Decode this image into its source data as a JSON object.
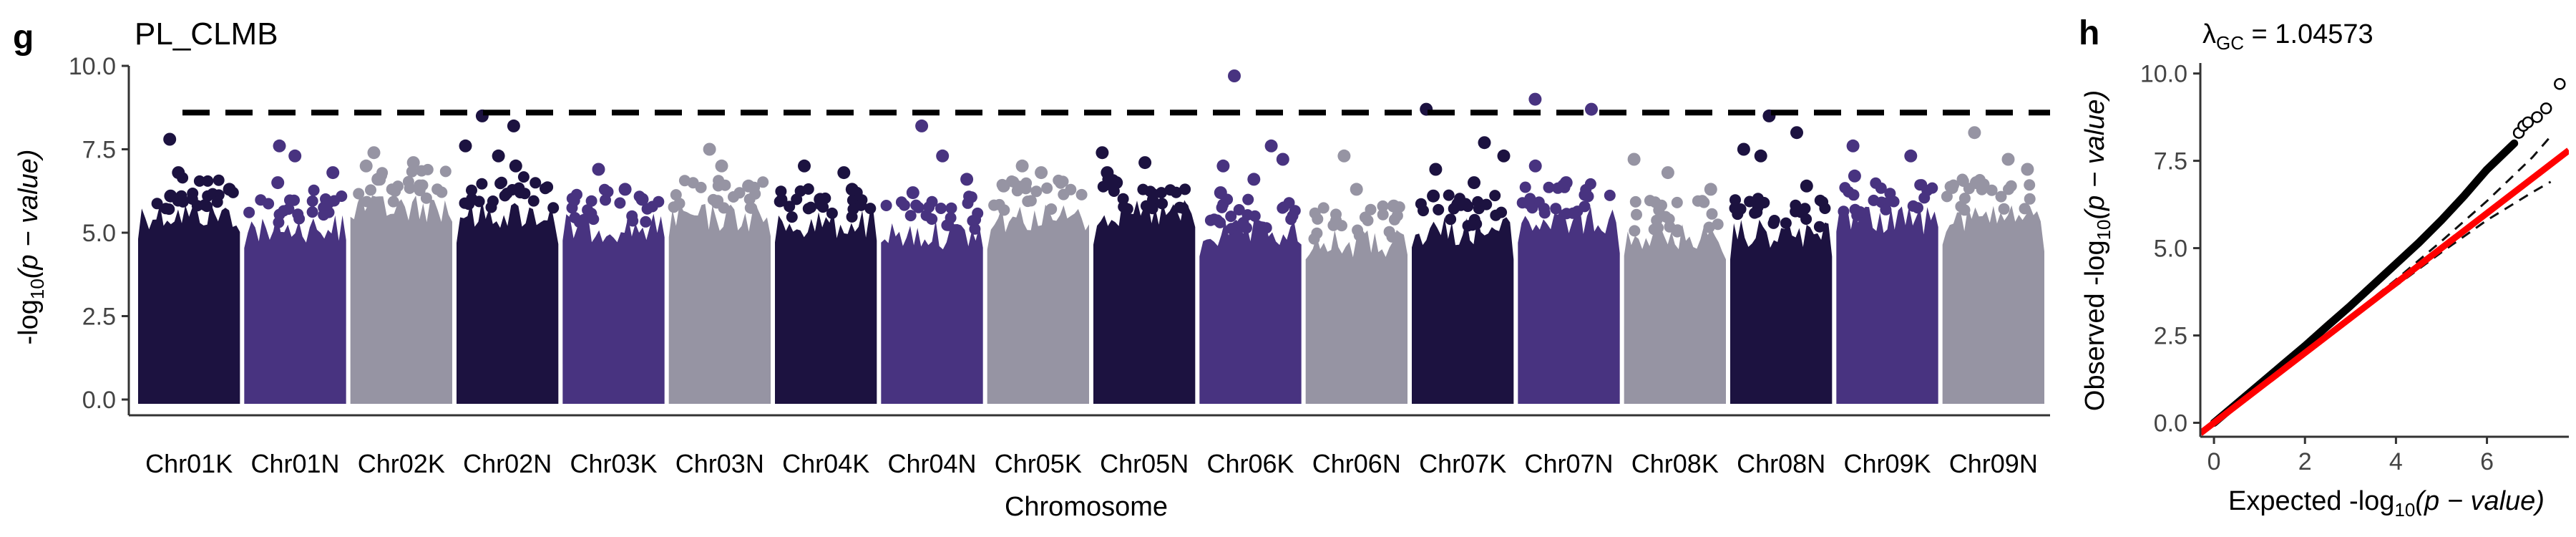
{
  "panels": {
    "g": {
      "label": "g",
      "title": "PL_CLMB",
      "xlabel": "Chromosome",
      "ylabel_prefix": "-log",
      "ylabel_sub": "10",
      "ylabel_suffix": "(p − value)",
      "ytick_labels": [
        "0.0",
        "2.5",
        "5.0",
        "7.5",
        "10.0"
      ]
    },
    "h": {
      "label": "h",
      "lambda_symbol": "λ",
      "lambda_sub": "GC",
      "lambda_text": " = 1.04573",
      "xlabel_prefix": "Expected -log",
      "xlabel_sub": "10",
      "xlabel_suffix": "(p − value)",
      "ylabel_prefix": "Observed -log",
      "ylabel_sub": "10",
      "ylabel_suffix": "(p − value)",
      "xtick_labels": [
        "0",
        "2",
        "4",
        "6"
      ],
      "ytick_labels": [
        "0.0",
        "2.5",
        "5.0",
        "7.5",
        "10.0"
      ]
    }
  },
  "chart_data": [
    {
      "type": "scatter",
      "subtype": "manhattan",
      "title": "PL_CLMB",
      "xlabel": "Chromosome",
      "ylabel": "-log10(p − value)",
      "ylim": [
        0,
        10
      ],
      "yticks": [
        0,
        2.5,
        5,
        7.5,
        10
      ],
      "significance_threshold": 8.6,
      "grid": false,
      "colors": [
        "#1c1240",
        "#483380",
        "#9694a3"
      ],
      "categories": [
        "Chr01K",
        "Chr01N",
        "Chr02K",
        "Chr02N",
        "Chr03K",
        "Chr03N",
        "Chr04K",
        "Chr04N",
        "Chr05K",
        "Chr05N",
        "Chr06K",
        "Chr06N",
        "Chr07K",
        "Chr07N",
        "Chr08K",
        "Chr08N",
        "Chr09K",
        "Chr09N"
      ],
      "chromosomes": [
        {
          "name": "Chr01K",
          "color_index": 0,
          "band_max": 6.0,
          "top_points": [
            7.8,
            6.8,
            6.3,
            6.1
          ]
        },
        {
          "name": "Chr01N",
          "color_index": 1,
          "band_max": 5.6,
          "top_points": [
            7.6,
            7.3,
            6.8,
            6.5
          ]
        },
        {
          "name": "Chr02K",
          "color_index": 2,
          "band_max": 6.2,
          "top_points": [
            7.4,
            7.1,
            7.0,
            6.6
          ]
        },
        {
          "name": "Chr02N",
          "color_index": 0,
          "band_max": 6.0,
          "top_points": [
            8.5,
            8.2,
            7.6,
            7.3,
            7.0
          ]
        },
        {
          "name": "Chr03K",
          "color_index": 1,
          "band_max": 5.6,
          "top_points": [
            6.9,
            6.3,
            6.0
          ]
        },
        {
          "name": "Chr03N",
          "color_index": 2,
          "band_max": 5.9,
          "top_points": [
            7.5,
            7.0,
            6.4
          ]
        },
        {
          "name": "Chr04K",
          "color_index": 0,
          "band_max": 5.7,
          "top_points": [
            7.0,
            6.8,
            6.3,
            6.0
          ]
        },
        {
          "name": "Chr04N",
          "color_index": 1,
          "band_max": 5.4,
          "top_points": [
            8.2,
            7.3,
            6.6,
            6.2
          ]
        },
        {
          "name": "Chr05K",
          "color_index": 2,
          "band_max": 5.9,
          "top_points": [
            7.0,
            6.8,
            6.4
          ]
        },
        {
          "name": "Chr05N",
          "color_index": 0,
          "band_max": 6.0,
          "top_points": [
            7.4,
            7.1,
            6.8,
            6.5
          ]
        },
        {
          "name": "Chr06K",
          "color_index": 1,
          "band_max": 5.4,
          "top_points": [
            9.7,
            7.6,
            7.2,
            7.0,
            6.6,
            6.2
          ]
        },
        {
          "name": "Chr06N",
          "color_index": 2,
          "band_max": 5.1,
          "top_points": [
            7.3,
            6.3,
            5.8
          ]
        },
        {
          "name": "Chr07K",
          "color_index": 0,
          "band_max": 5.5,
          "top_points": [
            8.7,
            7.7,
            7.3,
            6.9,
            6.5,
            6.1
          ]
        },
        {
          "name": "Chr07N",
          "color_index": 1,
          "band_max": 5.8,
          "top_points": [
            9.0,
            8.7,
            7.0,
            6.5
          ]
        },
        {
          "name": "Chr08K",
          "color_index": 2,
          "band_max": 5.3,
          "top_points": [
            7.2,
            6.8,
            6.3
          ]
        },
        {
          "name": "Chr08N",
          "color_index": 0,
          "band_max": 5.4,
          "top_points": [
            8.5,
            8.0,
            7.5,
            7.3,
            6.4
          ]
        },
        {
          "name": "Chr09K",
          "color_index": 1,
          "band_max": 5.8,
          "top_points": [
            7.6,
            7.3,
            6.7
          ]
        },
        {
          "name": "Chr09N",
          "color_index": 2,
          "band_max": 5.9,
          "top_points": [
            8.0,
            7.2,
            6.9,
            6.5
          ]
        }
      ]
    },
    {
      "type": "scatter",
      "subtype": "qq",
      "title": "λGC = 1.04573",
      "xlabel": "Expected -log10(p − value)",
      "ylabel": "Observed -log10(p − value)",
      "xlim": [
        -0.3,
        7.8
      ],
      "ylim": [
        -0.4,
        10.3
      ],
      "xticks": [
        0,
        2,
        4,
        6
      ],
      "yticks": [
        0,
        2.5,
        5,
        7.5,
        10
      ],
      "grid": false,
      "lambda_gc": 1.04573,
      "observed_curve": {
        "color": "#000000",
        "x": [
          0,
          0.5,
          1,
          1.5,
          2,
          2.5,
          3,
          3.5,
          4,
          4.5,
          5,
          5.5,
          5.8,
          6.0,
          6.2,
          6.4,
          6.6
        ],
        "y": [
          0,
          0.55,
          1.1,
          1.65,
          2.2,
          2.78,
          3.35,
          3.95,
          4.55,
          5.15,
          5.8,
          6.5,
          6.95,
          7.25,
          7.5,
          7.75,
          8.0
        ]
      },
      "outlier_points": {
        "style": "open-circle",
        "x": [
          6.7,
          6.8,
          6.9,
          7.1,
          7.3,
          7.6
        ],
        "y": [
          8.3,
          8.5,
          8.6,
          8.75,
          9.0,
          9.7
        ]
      },
      "reference_line": {
        "color": "#ff0000",
        "slope": 1,
        "intercept": 0
      },
      "confidence_band": {
        "style": "dashed",
        "x": [
          0,
          1,
          2,
          3,
          4,
          5,
          6,
          7,
          7.4
        ],
        "upper": [
          0.0,
          1.0,
          2.02,
          3.05,
          4.1,
          5.2,
          6.35,
          7.6,
          8.2
        ],
        "lower": [
          0.0,
          0.98,
          1.97,
          2.96,
          3.92,
          4.88,
          5.8,
          6.6,
          6.9
        ]
      }
    }
  ]
}
